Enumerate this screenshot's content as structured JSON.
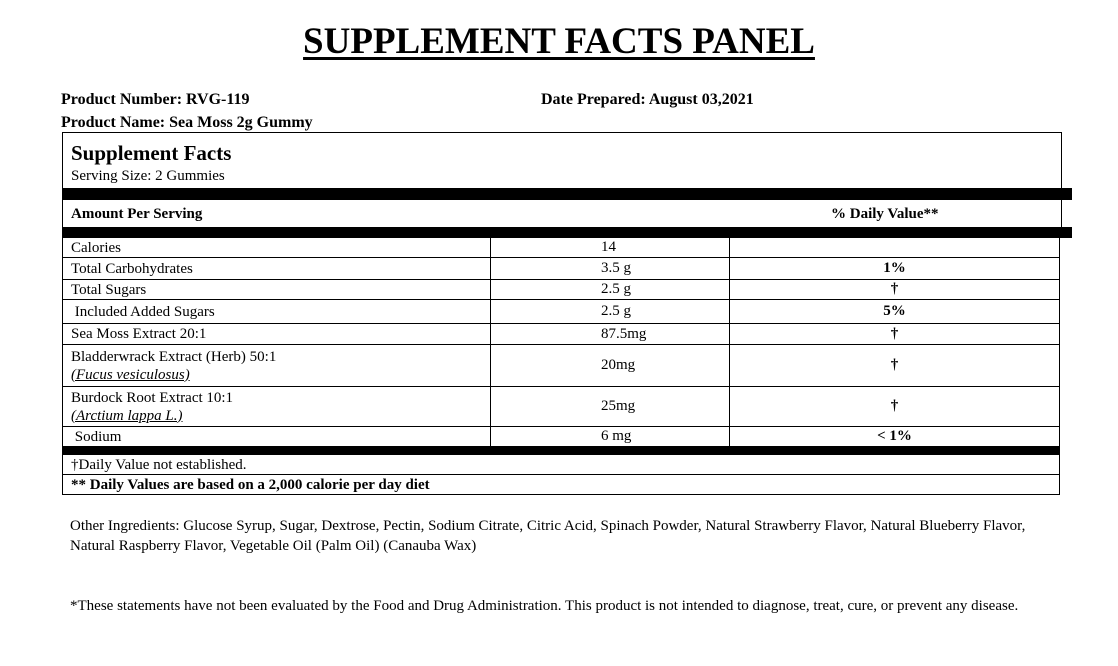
{
  "title": "SUPPLEMENT FACTS PANEL",
  "product_number": "Product Number: RVG-119",
  "product_name": "Product Name: Sea Moss 2g Gummy",
  "date_prepared": "Date Prepared: August 03,2021",
  "panel": {
    "heading": "Supplement Facts",
    "serving_size": "Serving Size: 2 Gummies",
    "amount_header": "Amount Per Serving",
    "dv_header": "% Daily Value**",
    "rows": [
      {
        "name": "Calories",
        "sub": "",
        "amount": "14",
        "dv": ""
      },
      {
        "name": "Total Carbohydrates",
        "sub": "",
        "amount": "3.5 g",
        "dv": "1%"
      },
      {
        "name": "Total Sugars",
        "sub": "",
        "amount": "2.5 g",
        "dv": "†"
      },
      {
        "name": " Included Added Sugars",
        "sub": "",
        "amount": "2.5 g",
        "dv": "5%"
      },
      {
        "name": "Sea Moss Extract 20:1",
        "sub": "",
        "amount": "87.5mg",
        "dv": "†"
      },
      {
        "name": "Bladderwrack Extract (Herb) 50:1",
        "sub": "(Fucus vesiculosus)",
        "amount": "20mg",
        "dv": "†"
      },
      {
        "name": "Burdock Root Extract 10:1",
        "sub": "(Arctium lappa L.)",
        "amount": "25mg",
        "dv": "†"
      },
      {
        "name": " Sodium",
        "sub": "",
        "amount": "6 mg",
        "dv": "< 1%"
      }
    ],
    "footnote_dagger": "†Daily Value not established.",
    "footnote_dv": "** Daily Values are based on a 2,000 calorie per day diet"
  },
  "other_ingredients": "Other Ingredients: Glucose Syrup, Sugar, Dextrose, Pectin, Sodium Citrate, Citric Acid, Spinach Powder, Natural Strawberry Flavor, Natural Blueberry Flavor, Natural Raspberry Flavor, Vegetable Oil (Palm Oil) (Canauba Wax)",
  "disclaimer": "*These statements have not been evaluated by the Food and Drug Administration. This product is not intended to diagnose, treat, cure, or prevent any disease."
}
